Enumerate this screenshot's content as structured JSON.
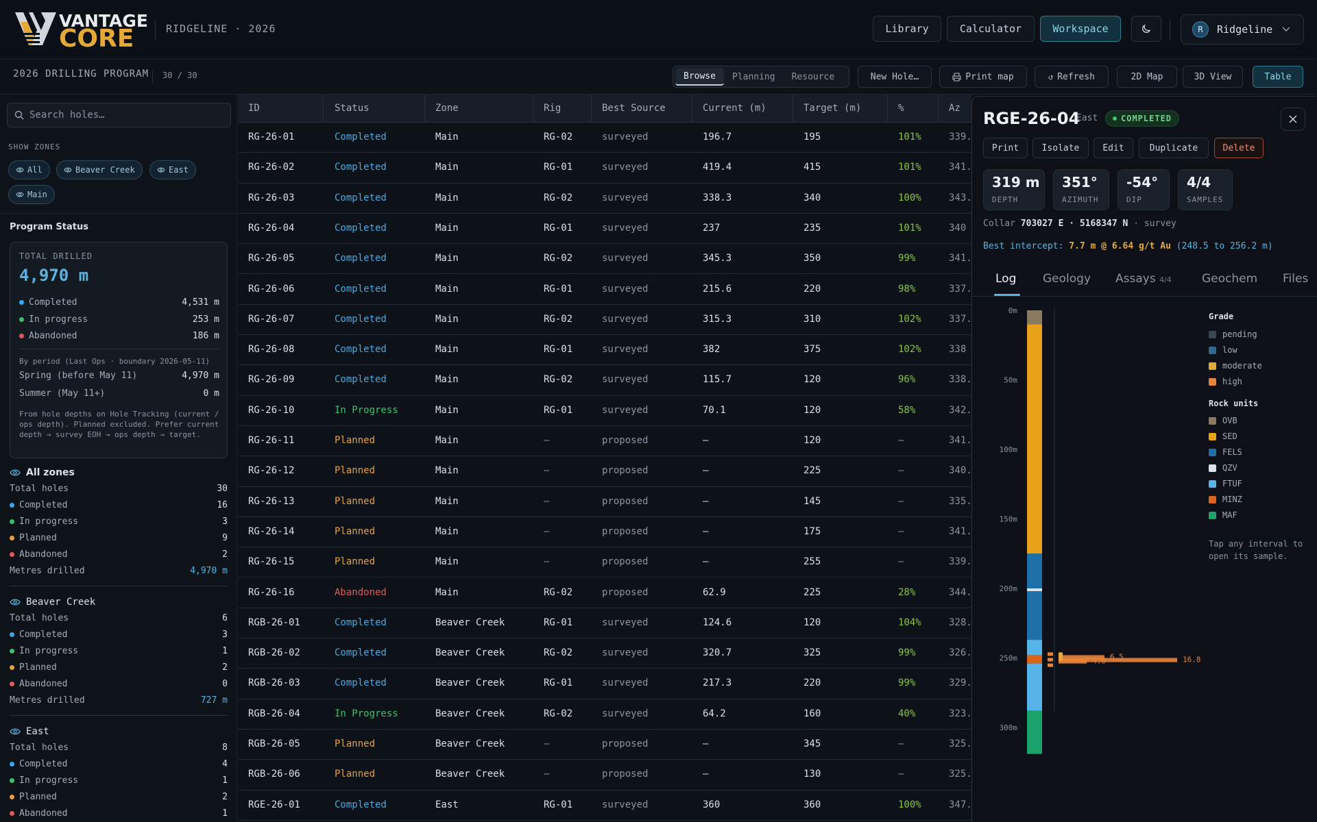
{
  "brand": {
    "word1": "VANTAGE",
    "word2": "CORE",
    "subtitle": "RIDGELINE · 2026"
  },
  "nav": {
    "library": "Library",
    "calculator": "Calculator",
    "workspace": "Workspace",
    "theme_icon": "moon-icon"
  },
  "user": {
    "initial": "R",
    "name": "Ridgeline"
  },
  "subbar": {
    "title": "2026 DRILLING PROGRAM",
    "count": "30 / 30",
    "modes": [
      "Browse",
      "Planning",
      "Resource"
    ],
    "active_mode": "Browse",
    "new_hole": "New Hole…",
    "print_map": "Print map",
    "refresh": "Refresh",
    "map2d": "2D Map",
    "view3d": "3D View",
    "table": "Table"
  },
  "sidebar": {
    "search_placeholder": "Search holes…",
    "show_zones_label": "SHOW ZONES",
    "zone_chips": [
      "All",
      "Beaver Creek",
      "East",
      "Main"
    ],
    "program_status_title": "Program Status",
    "total_drilled_label": "TOTAL DRILLED",
    "total_drilled": "4,970 m",
    "status_rows": [
      {
        "label": "Completed",
        "value": "4,531 m",
        "color": "#3aa8e6"
      },
      {
        "label": "In progress",
        "value": "253 m",
        "color": "#3fbf6e"
      },
      {
        "label": "Abandoned",
        "value": "186 m",
        "color": "#e05a5a"
      }
    ],
    "period_label": "By period (Last Ops · boundary 2026-05-11)",
    "periods": [
      {
        "label": "Spring (before May 11)",
        "value": "4,970 m"
      },
      {
        "label": "Summer (May 11+)",
        "value": "0 m"
      }
    ],
    "note": "From hole depths on Hole Tracking (current / ops depth). Planned excluded. Prefer current depth → survey EOH → ops depth → target.",
    "zones": [
      {
        "title": "All zones",
        "bold": true,
        "rows": [
          {
            "label": "Total holes",
            "value": "30"
          },
          {
            "label": "Completed",
            "value": "16",
            "color": "#3aa8e6"
          },
          {
            "label": "In progress",
            "value": "3",
            "color": "#3fbf6e"
          },
          {
            "label": "Planned",
            "value": "9",
            "color": "#e6a23c"
          },
          {
            "label": "Abandoned",
            "value": "2",
            "color": "#e05a5a"
          },
          {
            "label": "Metres drilled",
            "value": "4,970 m",
            "blue": true
          }
        ]
      },
      {
        "title": "Beaver Creek",
        "bold": false,
        "rows": [
          {
            "label": "Total holes",
            "value": "6"
          },
          {
            "label": "Completed",
            "value": "3",
            "color": "#3aa8e6"
          },
          {
            "label": "In progress",
            "value": "1",
            "color": "#3fbf6e"
          },
          {
            "label": "Planned",
            "value": "2",
            "color": "#e6a23c"
          },
          {
            "label": "Abandoned",
            "value": "0",
            "color": "#e05a5a"
          },
          {
            "label": "Metres drilled",
            "value": "727 m",
            "blue": true
          }
        ]
      },
      {
        "title": "East",
        "bold": false,
        "rows": [
          {
            "label": "Total holes",
            "value": "8"
          },
          {
            "label": "Completed",
            "value": "4",
            "color": "#3aa8e6"
          },
          {
            "label": "In progress",
            "value": "1",
            "color": "#3fbf6e"
          },
          {
            "label": "Planned",
            "value": "2",
            "color": "#e6a23c"
          },
          {
            "label": "Abandoned",
            "value": "1",
            "color": "#e05a5a"
          }
        ]
      }
    ]
  },
  "table": {
    "headers": [
      "ID",
      "Status",
      "Zone",
      "Rig",
      "Best Source",
      "Current (m)",
      "Target (m)",
      "%",
      "Az"
    ],
    "rows": [
      [
        "RG-26-01",
        "Completed",
        "Main",
        "RG-02",
        "surveyed",
        "196.7",
        "195",
        "101%",
        "339."
      ],
      [
        "RG-26-02",
        "Completed",
        "Main",
        "RG-01",
        "surveyed",
        "419.4",
        "415",
        "101%",
        "341."
      ],
      [
        "RG-26-03",
        "Completed",
        "Main",
        "RG-02",
        "surveyed",
        "338.3",
        "340",
        "100%",
        "343."
      ],
      [
        "RG-26-04",
        "Completed",
        "Main",
        "RG-01",
        "surveyed",
        "237",
        "235",
        "101%",
        "340"
      ],
      [
        "RG-26-05",
        "Completed",
        "Main",
        "RG-02",
        "surveyed",
        "345.3",
        "350",
        "99%",
        "341."
      ],
      [
        "RG-26-06",
        "Completed",
        "Main",
        "RG-01",
        "surveyed",
        "215.6",
        "220",
        "98%",
        "337."
      ],
      [
        "RG-26-07",
        "Completed",
        "Main",
        "RG-02",
        "surveyed",
        "315.3",
        "310",
        "102%",
        "337."
      ],
      [
        "RG-26-08",
        "Completed",
        "Main",
        "RG-01",
        "surveyed",
        "382",
        "375",
        "102%",
        "338"
      ],
      [
        "RG-26-09",
        "Completed",
        "Main",
        "RG-02",
        "surveyed",
        "115.7",
        "120",
        "96%",
        "338."
      ],
      [
        "RG-26-10",
        "In Progress",
        "Main",
        "RG-01",
        "surveyed",
        "70.1",
        "120",
        "58%",
        "342."
      ],
      [
        "RG-26-11",
        "Planned",
        "Main",
        "—",
        "proposed",
        "—",
        "120",
        "—",
        "341."
      ],
      [
        "RG-26-12",
        "Planned",
        "Main",
        "—",
        "proposed",
        "—",
        "225",
        "—",
        "340."
      ],
      [
        "RG-26-13",
        "Planned",
        "Main",
        "—",
        "proposed",
        "—",
        "145",
        "—",
        "335."
      ],
      [
        "RG-26-14",
        "Planned",
        "Main",
        "—",
        "proposed",
        "—",
        "175",
        "—",
        "341."
      ],
      [
        "RG-26-15",
        "Planned",
        "Main",
        "—",
        "proposed",
        "—",
        "255",
        "—",
        "339."
      ],
      [
        "RG-26-16",
        "Abandoned",
        "Main",
        "RG-02",
        "proposed",
        "62.9",
        "225",
        "28%",
        "344."
      ],
      [
        "RGB-26-01",
        "Completed",
        "Beaver Creek",
        "RG-01",
        "surveyed",
        "124.6",
        "120",
        "104%",
        "328."
      ],
      [
        "RGB-26-02",
        "Completed",
        "Beaver Creek",
        "RG-02",
        "surveyed",
        "320.7",
        "325",
        "99%",
        "326."
      ],
      [
        "RGB-26-03",
        "Completed",
        "Beaver Creek",
        "RG-01",
        "surveyed",
        "217.3",
        "220",
        "99%",
        "329."
      ],
      [
        "RGB-26-04",
        "In Progress",
        "Beaver Creek",
        "RG-02",
        "surveyed",
        "64.2",
        "160",
        "40%",
        "323."
      ],
      [
        "RGB-26-05",
        "Planned",
        "Beaver Creek",
        "—",
        "proposed",
        "—",
        "345",
        "—",
        "325."
      ],
      [
        "RGB-26-06",
        "Planned",
        "Beaver Creek",
        "—",
        "proposed",
        "—",
        "130",
        "—",
        "325."
      ],
      [
        "RGE-26-01",
        "Completed",
        "East",
        "RG-01",
        "surveyed",
        "360",
        "360",
        "100%",
        "347."
      ]
    ]
  },
  "detail": {
    "title": "RGE-26-04",
    "zone": "East",
    "status": "COMPLETED",
    "actions": [
      "Print",
      "Isolate",
      "Edit",
      "Duplicate",
      "Delete"
    ],
    "stats": [
      {
        "value": "319 m",
        "label": "DEPTH"
      },
      {
        "value": "351°",
        "label": "AZIMUTH"
      },
      {
        "value": "-54°",
        "label": "DIP"
      },
      {
        "value": "4/4",
        "label": "SAMPLES"
      }
    ],
    "collar_prefix": "Collar",
    "collar_e": "703027 E",
    "collar_sep": "·",
    "collar_n": "5168347 N",
    "collar_suffix": "· survey",
    "intercept_label": "Best intercept:",
    "intercept_value": "7.7 m @ 6.64 g/t Au",
    "intercept_range": "(248.5 to 256.2 m)",
    "tabs": [
      {
        "label": "Log",
        "badge": ""
      },
      {
        "label": "Geology",
        "badge": ""
      },
      {
        "label": "Assays",
        "badge": "4/4"
      },
      {
        "label": "Geochem",
        "badge": ""
      },
      {
        "label": "Files",
        "badge": ""
      }
    ],
    "active_tab": "Log",
    "depth_ticks": [
      "0m",
      "50m",
      "100m",
      "150m",
      "200m",
      "250m",
      "300m"
    ],
    "grade_values": [
      "6.5",
      "4.0",
      "16.8"
    ],
    "legend": {
      "grade_title": "Grade",
      "grade": [
        {
          "label": "pending",
          "color": "#3a4552"
        },
        {
          "label": "low",
          "color": "#2e6a8a"
        },
        {
          "label": "moderate",
          "color": "#e5a93a"
        },
        {
          "label": "high",
          "color": "#e8843a"
        }
      ],
      "rock_title": "Rock units",
      "rock": [
        {
          "label": "OVB",
          "color": "#8c7a60"
        },
        {
          "label": "SED",
          "color": "#e8a21a"
        },
        {
          "label": "FELS",
          "color": "#1f6fa8"
        },
        {
          "label": "QZV",
          "color": "#dde3ea"
        },
        {
          "label": "FTUF",
          "color": "#56b4e8"
        },
        {
          "label": "MINZ",
          "color": "#d9641a"
        },
        {
          "label": "MAF",
          "color": "#1aa36a"
        }
      ],
      "note": "Tap any interval to open its sample."
    }
  }
}
